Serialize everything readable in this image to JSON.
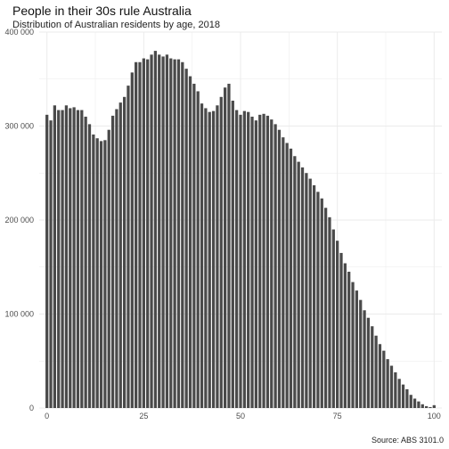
{
  "chart_data": {
    "type": "bar",
    "title": "People in their 30s rule Australia",
    "subtitle": "Distribution of Australian residents by age, 2018",
    "caption": "Source: ABS 3101.0",
    "xlabel": "",
    "ylabel": "",
    "xlim": [
      -2,
      102
    ],
    "ylim": [
      0,
      400000
    ],
    "x_ticks": [
      0,
      25,
      50,
      75,
      100
    ],
    "y_ticks": [
      0,
      100000,
      200000,
      300000,
      400000
    ],
    "y_tick_labels": [
      "0",
      "100 000",
      "200 000",
      "300 000",
      "400 000"
    ],
    "x_tick_labels": [
      "0",
      "25",
      "50",
      "75",
      "100"
    ],
    "grid": true,
    "bar_color": "#4a4a4a",
    "grid_color": "#ebebeb",
    "ages": [
      0,
      1,
      2,
      3,
      4,
      5,
      6,
      7,
      8,
      9,
      10,
      11,
      12,
      13,
      14,
      15,
      16,
      17,
      18,
      19,
      20,
      21,
      22,
      23,
      24,
      25,
      26,
      27,
      28,
      29,
      30,
      31,
      32,
      33,
      34,
      35,
      36,
      37,
      38,
      39,
      40,
      41,
      42,
      43,
      44,
      45,
      46,
      47,
      48,
      49,
      50,
      51,
      52,
      53,
      54,
      55,
      56,
      57,
      58,
      59,
      60,
      61,
      62,
      63,
      64,
      65,
      66,
      67,
      68,
      69,
      70,
      71,
      72,
      73,
      74,
      75,
      76,
      77,
      78,
      79,
      80,
      81,
      82,
      83,
      84,
      85,
      86,
      87,
      88,
      89,
      90,
      91,
      92,
      93,
      94,
      95,
      96,
      97,
      98,
      99,
      100
    ],
    "values": [
      312000,
      306000,
      322000,
      317000,
      317000,
      322000,
      319000,
      320000,
      317000,
      317000,
      310000,
      302000,
      291000,
      287000,
      284000,
      285000,
      296000,
      311000,
      318000,
      325000,
      331000,
      343000,
      357000,
      368000,
      368000,
      372000,
      371000,
      376000,
      380000,
      376000,
      374000,
      376000,
      372000,
      371000,
      371000,
      368000,
      361000,
      353000,
      345000,
      337000,
      324000,
      319000,
      315000,
      316000,
      322000,
      331000,
      341000,
      345000,
      327000,
      317000,
      312000,
      316000,
      315000,
      310000,
      306000,
      312000,
      313000,
      311000,
      307000,
      302000,
      296000,
      288000,
      282000,
      276000,
      268000,
      262000,
      256000,
      250000,
      244000,
      237000,
      230000,
      223000,
      213000,
      203000,
      190000,
      178000,
      165000,
      154000,
      145000,
      134000,
      125000,
      115000,
      104000,
      96000,
      87000,
      77000,
      68000,
      61000,
      52000,
      45000,
      38000,
      31000,
      25000,
      20000,
      14000,
      10000,
      7000,
      4000,
      2000,
      1000,
      3000
    ]
  }
}
